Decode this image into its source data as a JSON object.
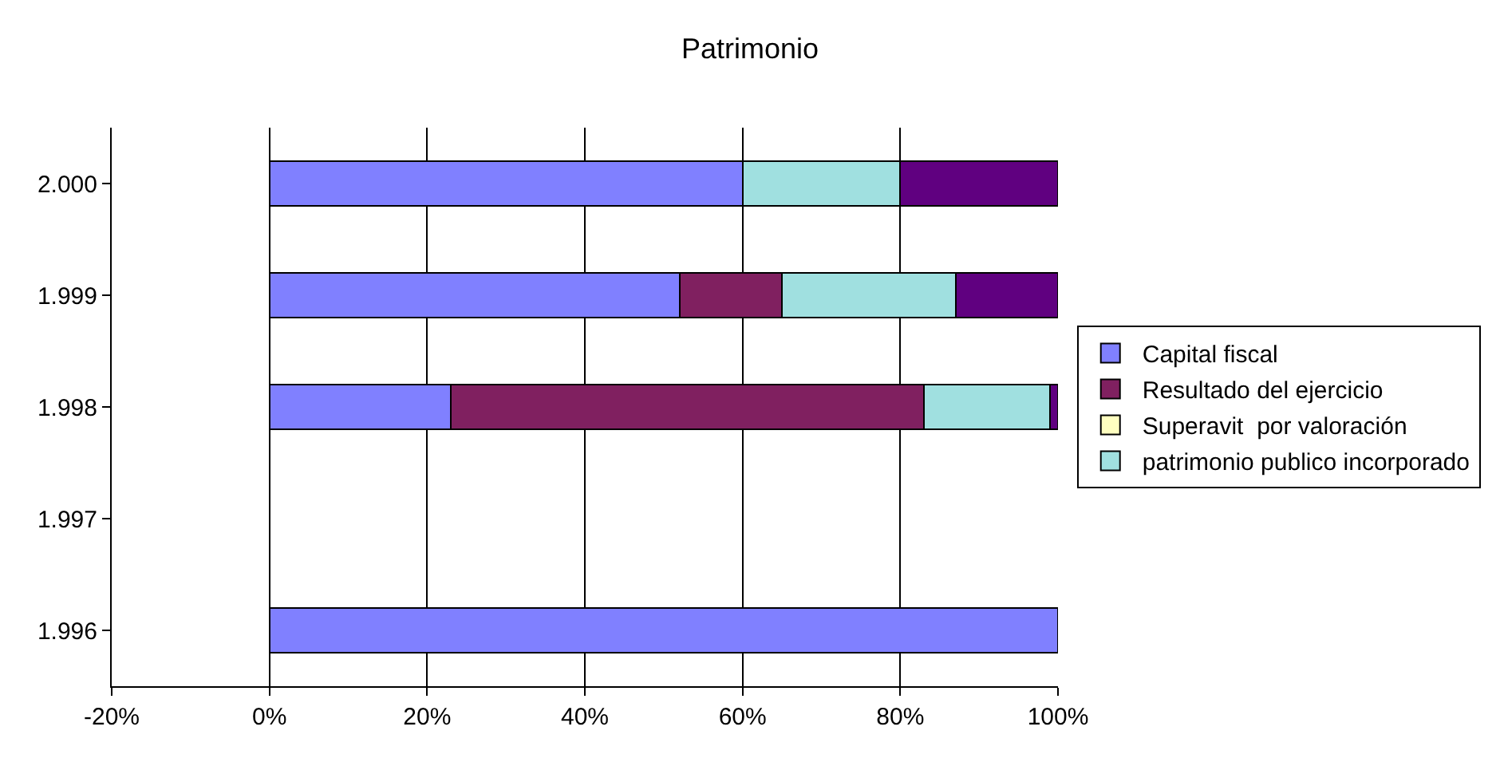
{
  "chart_data": {
    "type": "bar",
    "title": "Patrimonio",
    "orientation": "horizontal",
    "stacked": true,
    "categories": [
      "2.000",
      "1.999",
      "1.998",
      "1.997",
      "1.996"
    ],
    "series": [
      {
        "name": "Capital fiscal",
        "color": "#8080ff",
        "values": [
          60,
          52,
          23,
          null,
          100
        ]
      },
      {
        "name": "Resultado del ejercicio",
        "color": "#802060",
        "values": [
          null,
          13,
          60,
          null,
          null
        ]
      },
      {
        "name": "Superavit  por valoración",
        "color": "#ffffc0",
        "values": [
          null,
          null,
          null,
          null,
          null
        ]
      },
      {
        "name": "patrimonio publico incorporado",
        "color": "#a0e0e0",
        "values": [
          20,
          22,
          16,
          null,
          null
        ]
      },
      {
        "color": "#600080",
        "values": [
          20,
          13,
          1,
          null,
          null
        ]
      }
    ],
    "xlim": [
      -20,
      100
    ],
    "xticks": [
      {
        "value": -20,
        "label": "-20%"
      },
      {
        "value": 0,
        "label": "0%"
      },
      {
        "value": 20,
        "label": "20%"
      },
      {
        "value": 40,
        "label": "40%"
      },
      {
        "value": 60,
        "label": "60%"
      },
      {
        "value": 80,
        "label": "80%"
      },
      {
        "value": 100,
        "label": "100%"
      }
    ],
    "grid": "x",
    "legend": "right"
  }
}
